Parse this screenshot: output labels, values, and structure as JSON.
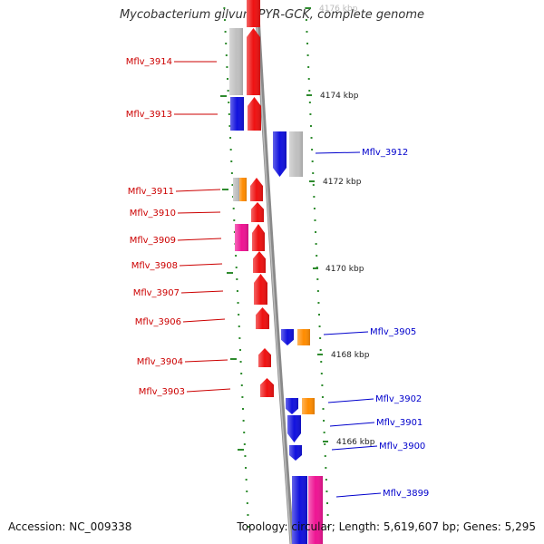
{
  "title": "Mycobacterium gilvum PYR-GCK, complete genome",
  "accession": "Accession: NC_009338",
  "summary": "Topology: circular; Length: 5,619,607 bp; Genes: 5,295",
  "colors": {
    "backbone": "#8a8a8a",
    "tick": "#2e8b2e",
    "label_left": "#cc0000",
    "label_right": "#0000cc"
  },
  "scale_labels": [
    {
      "text": "4176 kbp",
      "kbp": 4176
    },
    {
      "text": "4174 kbp",
      "kbp": 4174
    },
    {
      "text": "4172 kbp",
      "kbp": 4172
    },
    {
      "text": "4170 kbp",
      "kbp": 4170
    },
    {
      "text": "4168 kbp",
      "kbp": 4168
    },
    {
      "text": "4166 kbp",
      "kbp": 4166
    }
  ],
  "left_genes": [
    {
      "name": "Mflv_3914",
      "color": "#ee1111"
    },
    {
      "name": "Mflv_3913",
      "color": "#ee1111"
    },
    {
      "name": "Mflv_3911",
      "color": "#ee1111"
    },
    {
      "name": "Mflv_3910",
      "color": "#ee1111"
    },
    {
      "name": "Mflv_3909",
      "color": "#ee1111"
    },
    {
      "name": "Mflv_3908",
      "color": "#ee1111"
    },
    {
      "name": "Mflv_3907",
      "color": "#ee1111"
    },
    {
      "name": "Mflv_3906",
      "color": "#ee1111"
    },
    {
      "name": "Mflv_3904",
      "color": "#ee1111"
    },
    {
      "name": "Mflv_3903",
      "color": "#ee1111"
    }
  ],
  "right_genes": [
    {
      "name": "Mflv_3912",
      "color": "#1111dd"
    },
    {
      "name": "Mflv_3905",
      "color": "#1111dd"
    },
    {
      "name": "Mflv_3902",
      "color": "#1111dd"
    },
    {
      "name": "Mflv_3901",
      "color": "#1111dd"
    },
    {
      "name": "Mflv_3900",
      "color": "#1111dd"
    },
    {
      "name": "Mflv_3899",
      "color": "#1111dd"
    }
  ],
  "feature_colors": {
    "gray": "#c0c0c0",
    "blue": "#1111dd",
    "orange": "#ff8c00",
    "pink": "#ee1493",
    "red": "#ee1111"
  }
}
